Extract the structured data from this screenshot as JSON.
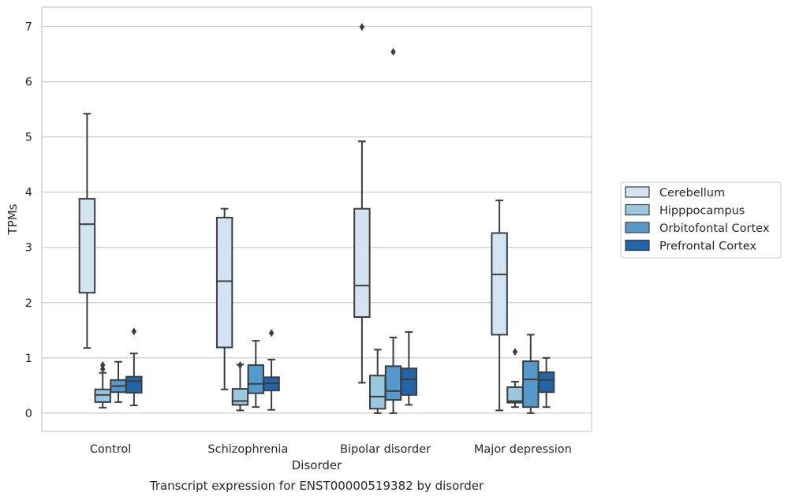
{
  "chart_data": {
    "type": "boxplot",
    "title": "",
    "caption": "Transcript expression for ENST00000519382 by disorder",
    "xlabel": "Disorder",
    "ylabel": "TPMs",
    "ylim": [
      -0.33,
      7.35
    ],
    "yticks": [
      0,
      1,
      2,
      3,
      4,
      5,
      6,
      7
    ],
    "grid": "horizontal",
    "legend_position": "right",
    "categories": [
      "Control",
      "Schizophrenia",
      "Bipolar disorder",
      "Major depression"
    ],
    "series": [
      {
        "name": "Cerebellum",
        "color": "#d4e3f2",
        "boxes": [
          {
            "whislo": 1.18,
            "q1": 2.18,
            "med": 3.42,
            "q3": 3.88,
            "whishi": 5.42,
            "fliers": []
          },
          {
            "whislo": 0.43,
            "q1": 1.19,
            "med": 2.39,
            "q3": 3.54,
            "whishi": 3.7,
            "fliers": []
          },
          {
            "whislo": 0.55,
            "q1": 1.74,
            "med": 2.31,
            "q3": 3.7,
            "whishi": 4.92,
            "fliers": [
              6.99
            ]
          },
          {
            "whislo": 0.05,
            "q1": 1.42,
            "med": 2.51,
            "q3": 3.26,
            "whishi": 3.85,
            "fliers": []
          }
        ]
      },
      {
        "name": "Hipppocampus",
        "color": "#9ac8e0",
        "boxes": [
          {
            "whislo": 0.1,
            "q1": 0.2,
            "med": 0.33,
            "q3": 0.43,
            "whishi": 0.73,
            "fliers": [
              0.8,
              0.87
            ]
          },
          {
            "whislo": 0.05,
            "q1": 0.15,
            "med": 0.22,
            "q3": 0.44,
            "whishi": 0.88,
            "fliers": [
              0.87
            ]
          },
          {
            "whislo": 0.0,
            "q1": 0.08,
            "med": 0.3,
            "q3": 0.68,
            "whishi": 1.15,
            "fliers": []
          },
          {
            "whislo": 0.11,
            "q1": 0.19,
            "med": 0.22,
            "q3": 0.47,
            "whishi": 0.57,
            "fliers": [
              1.11
            ]
          }
        ]
      },
      {
        "name": "Orbitofontal Cortex",
        "color": "#5499c9",
        "boxes": [
          {
            "whislo": 0.2,
            "q1": 0.38,
            "med": 0.49,
            "q3": 0.6,
            "whishi": 0.93,
            "fliers": []
          },
          {
            "whislo": 0.11,
            "q1": 0.36,
            "med": 0.53,
            "q3": 0.87,
            "whishi": 1.31,
            "fliers": []
          },
          {
            "whislo": 0.0,
            "q1": 0.24,
            "med": 0.4,
            "q3": 0.85,
            "whishi": 1.37,
            "fliers": [
              6.54
            ]
          },
          {
            "whislo": 0.0,
            "q1": 0.11,
            "med": 0.61,
            "q3": 0.94,
            "whishi": 1.42,
            "fliers": []
          }
        ]
      },
      {
        "name": "Prefrontal Cortex",
        "color": "#2265a8",
        "boxes": [
          {
            "whislo": 0.14,
            "q1": 0.37,
            "med": 0.58,
            "q3": 0.66,
            "whishi": 1.08,
            "fliers": [
              1.48
            ]
          },
          {
            "whislo": 0.06,
            "q1": 0.41,
            "med": 0.54,
            "q3": 0.65,
            "whishi": 0.97,
            "fliers": [
              1.45
            ]
          },
          {
            "whislo": 0.15,
            "q1": 0.33,
            "med": 0.61,
            "q3": 0.81,
            "whishi": 1.47,
            "fliers": []
          },
          {
            "whislo": 0.11,
            "q1": 0.38,
            "med": 0.6,
            "q3": 0.74,
            "whishi": 1.0,
            "fliers": []
          }
        ]
      }
    ]
  }
}
